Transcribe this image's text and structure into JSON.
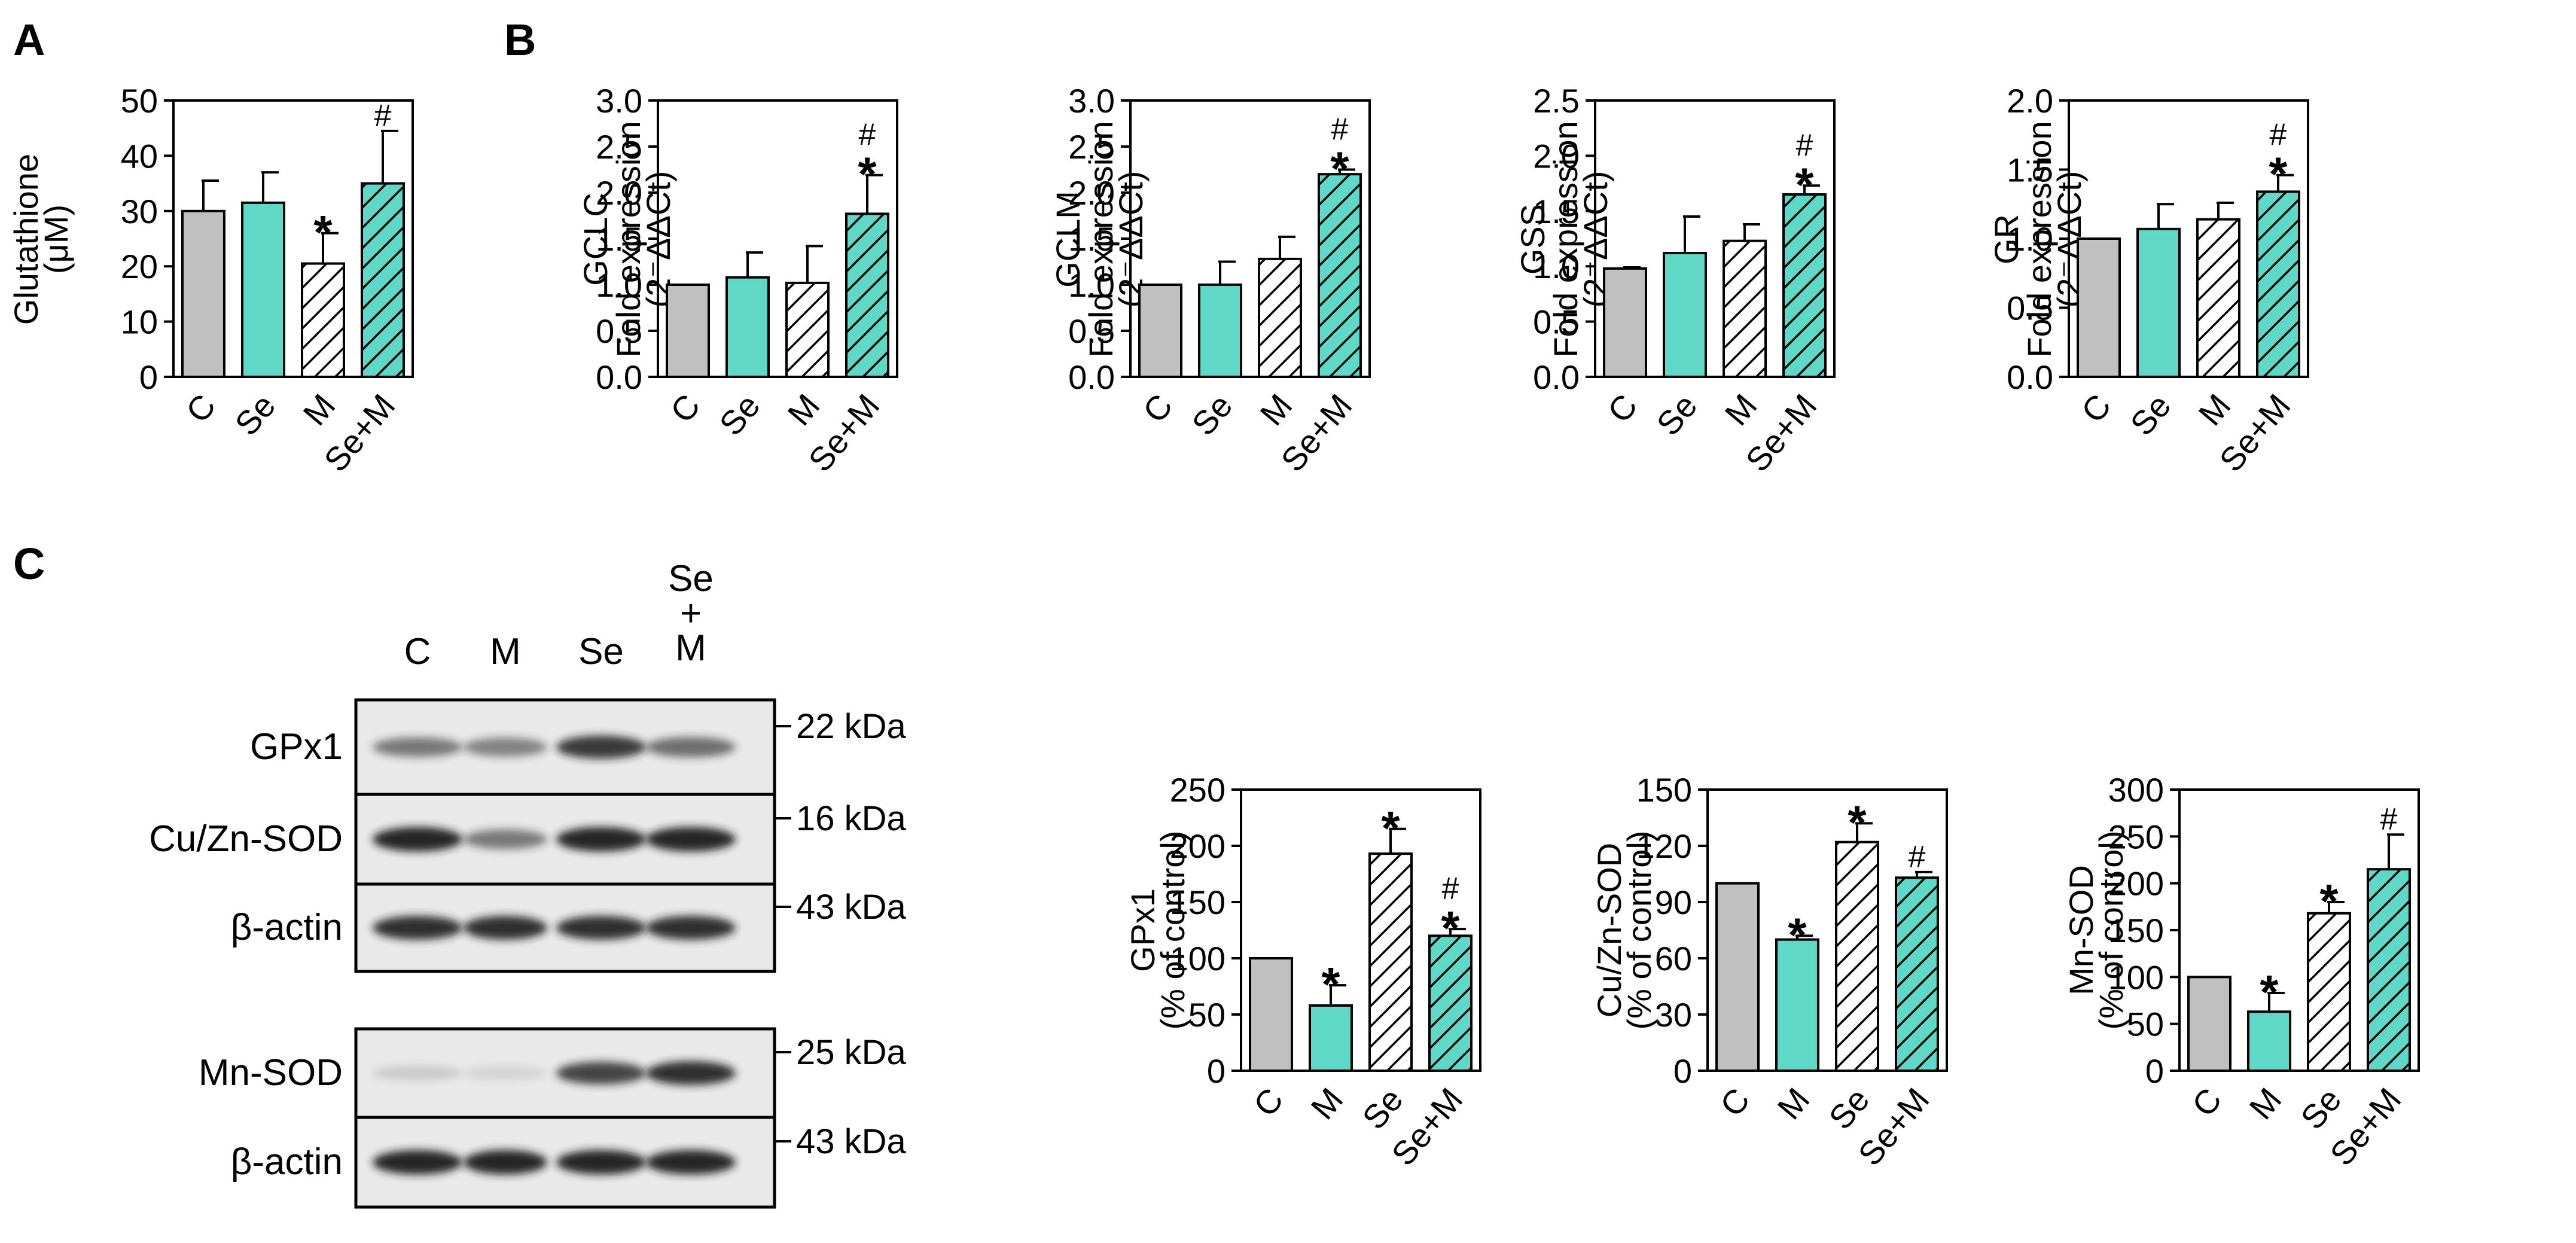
{
  "figure": {
    "panel_labels": [
      "A",
      "B",
      "C"
    ]
  },
  "colors": {
    "control": "#c0c0c0",
    "teal": "#5fd8c8",
    "hatch_light_bg": "#ffffff",
    "hatch_teal_bg": "#5fd8c8",
    "hatch_line": "#000000",
    "band": "#1a1a1a"
  },
  "chart_data": [
    {
      "id": "glutathione",
      "type": "bar",
      "ylabel": [
        "Glutathione",
        "(μM)"
      ],
      "ylim": [
        0,
        50
      ],
      "yticks": [
        0,
        10,
        20,
        30,
        40,
        50
      ],
      "tick_labels": [
        "0",
        "10",
        "20",
        "30",
        "40",
        "50"
      ],
      "categories": [
        "C",
        "Se",
        "M",
        "Se+M"
      ],
      "values": [
        30,
        31.5,
        20.5,
        35
      ],
      "errors": [
        5.5,
        5.5,
        5.5,
        9.5
      ],
      "fills": [
        "control",
        "teal",
        "hatch_light",
        "hatch_teal"
      ],
      "markers": [
        "",
        "",
        "*",
        "#"
      ]
    },
    {
      "id": "gclc",
      "type": "bar",
      "ylabel": [
        "GCLC",
        "Fold expression",
        "(2⁻ΔΔCt)"
      ],
      "ylim": [
        0,
        3.0
      ],
      "yticks": [
        0,
        0.5,
        1.0,
        1.5,
        2.0,
        2.5,
        3.0
      ],
      "tick_labels": [
        "0.0",
        "0.5",
        "1.0",
        "1.5",
        "2.0",
        "2.5",
        "3.0"
      ],
      "categories": [
        "C",
        "Se",
        "M",
        "Se+M"
      ],
      "values": [
        1.0,
        1.08,
        1.02,
        1.77
      ],
      "errors": [
        0,
        0.27,
        0.4,
        0.42
      ],
      "fills": [
        "control",
        "teal",
        "hatch_light",
        "hatch_teal"
      ],
      "markers": [
        "",
        "",
        "",
        "#*"
      ]
    },
    {
      "id": "gclm",
      "type": "bar",
      "ylabel": [
        "GCLM",
        "Fold expression",
        "(2⁻ΔΔCt)"
      ],
      "ylim": [
        0,
        3.0
      ],
      "yticks": [
        0,
        0.5,
        1.0,
        1.5,
        2.0,
        2.5,
        3.0
      ],
      "tick_labels": [
        "0.0",
        "0.5",
        "1.0",
        "1.5",
        "2.0",
        "2.5",
        "3.0"
      ],
      "categories": [
        "C",
        "Se",
        "M",
        "Se+M"
      ],
      "values": [
        1.0,
        1.0,
        1.28,
        2.2
      ],
      "errors": [
        0,
        0.25,
        0.24,
        0.05
      ],
      "fills": [
        "control",
        "teal",
        "hatch_light",
        "hatch_teal"
      ],
      "markers": [
        "",
        "",
        "",
        "#*"
      ]
    },
    {
      "id": "gss",
      "type": "bar",
      "ylabel": [
        "GSS",
        "Fold expression",
        "(2⁻ΔΔCt)"
      ],
      "ylim": [
        0,
        2.5
      ],
      "yticks": [
        0,
        0.5,
        1.0,
        1.5,
        2.0,
        2.5
      ],
      "tick_labels": [
        "0.0",
        "0.5",
        "1.0",
        "1.5",
        "2.0",
        "2.5"
      ],
      "categories": [
        "C",
        "Se",
        "M",
        "Se+M"
      ],
      "values": [
        0.98,
        1.12,
        1.23,
        1.65
      ],
      "errors": [
        0.01,
        0.33,
        0.15,
        0.08
      ],
      "fills": [
        "control",
        "teal",
        "hatch_light",
        "hatch_teal"
      ],
      "markers": [
        "",
        "",
        "",
        "#*"
      ]
    },
    {
      "id": "gr",
      "type": "bar",
      "ylabel": [
        "GR",
        "Fold expression",
        "(2⁻ΔΔCt)"
      ],
      "ylim": [
        0,
        2.0
      ],
      "yticks": [
        0,
        0.5,
        1.0,
        1.5,
        2.0
      ],
      "tick_labels": [
        "0.0",
        "0.5",
        "1.0",
        "1.5",
        "2.0"
      ],
      "categories": [
        "C",
        "Se",
        "M",
        "Se+M"
      ],
      "values": [
        1.0,
        1.07,
        1.14,
        1.34
      ],
      "errors": [
        0,
        0.18,
        0.12,
        0.12
      ],
      "fills": [
        "control",
        "teal",
        "hatch_light",
        "hatch_teal"
      ],
      "markers": [
        "",
        "",
        "",
        "#*"
      ]
    },
    {
      "id": "gpx1_quant",
      "type": "bar",
      "ylabel": [
        "GPx1",
        "(% of control)"
      ],
      "ylim": [
        0,
        250
      ],
      "yticks": [
        0,
        50,
        100,
        150,
        200,
        250
      ],
      "tick_labels": [
        "0",
        "50",
        "100",
        "150",
        "200",
        "250"
      ],
      "categories": [
        "C",
        "M",
        "Se",
        "Se+M"
      ],
      "values": [
        100,
        58,
        193,
        120
      ],
      "errors": [
        0,
        18,
        22,
        6
      ],
      "fills": [
        "control",
        "teal",
        "hatch_light",
        "hatch_teal"
      ],
      "markers": [
        "",
        "*",
        "*",
        "#*"
      ]
    },
    {
      "id": "cuznsod_quant",
      "type": "bar",
      "ylabel": [
        "Cu/Zn-SOD",
        "(% of control)"
      ],
      "ylim": [
        0,
        150
      ],
      "yticks": [
        0,
        30,
        60,
        90,
        120,
        150
      ],
      "tick_labels": [
        "0",
        "30",
        "60",
        "90",
        "120",
        "150"
      ],
      "categories": [
        "C",
        "M",
        "Se",
        "Se+M"
      ],
      "values": [
        100,
        70,
        122,
        103
      ],
      "errors": [
        0,
        2,
        10,
        3
      ],
      "fills": [
        "control",
        "teal",
        "hatch_light",
        "hatch_teal"
      ],
      "markers": [
        "",
        "*",
        "*",
        "#"
      ]
    },
    {
      "id": "mnsod_quant",
      "type": "bar",
      "ylabel": [
        "Mn-SOD",
        "(% of control)"
      ],
      "ylim": [
        0,
        300
      ],
      "yticks": [
        0,
        50,
        100,
        150,
        200,
        250,
        300
      ],
      "tick_labels": [
        "0",
        "50",
        "100",
        "150",
        "200",
        "250",
        "300"
      ],
      "categories": [
        "C",
        "M",
        "Se",
        "Se+M"
      ],
      "values": [
        100,
        63,
        168,
        215
      ],
      "errors": [
        0,
        20,
        12,
        37
      ],
      "fills": [
        "control",
        "teal",
        "hatch_light",
        "hatch_teal"
      ],
      "markers": [
        "",
        "*",
        "*",
        "#"
      ]
    }
  ],
  "western_blot": {
    "lanes": [
      "C",
      "M",
      "Se",
      "Se\n+\nM"
    ],
    "rows": [
      {
        "protein": "GPx1",
        "size": "22 kDa",
        "intensities": [
          0.55,
          0.5,
          0.85,
          0.6
        ]
      },
      {
        "protein": "Cu/Zn-SOD",
        "size": "16 kDa",
        "intensities": [
          0.95,
          0.55,
          0.95,
          0.95
        ]
      },
      {
        "protein": "β-actin",
        "size": "43 kDa",
        "intensities": [
          0.9,
          0.9,
          0.9,
          0.9
        ]
      },
      {
        "protein": "Mn-SOD",
        "size": "25 kDa",
        "intensities": [
          0.15,
          0.1,
          0.8,
          0.9
        ]
      },
      {
        "protein": "β-actin",
        "size": "43 kDa",
        "intensities": [
          0.95,
          0.95,
          0.95,
          0.95
        ]
      }
    ]
  }
}
